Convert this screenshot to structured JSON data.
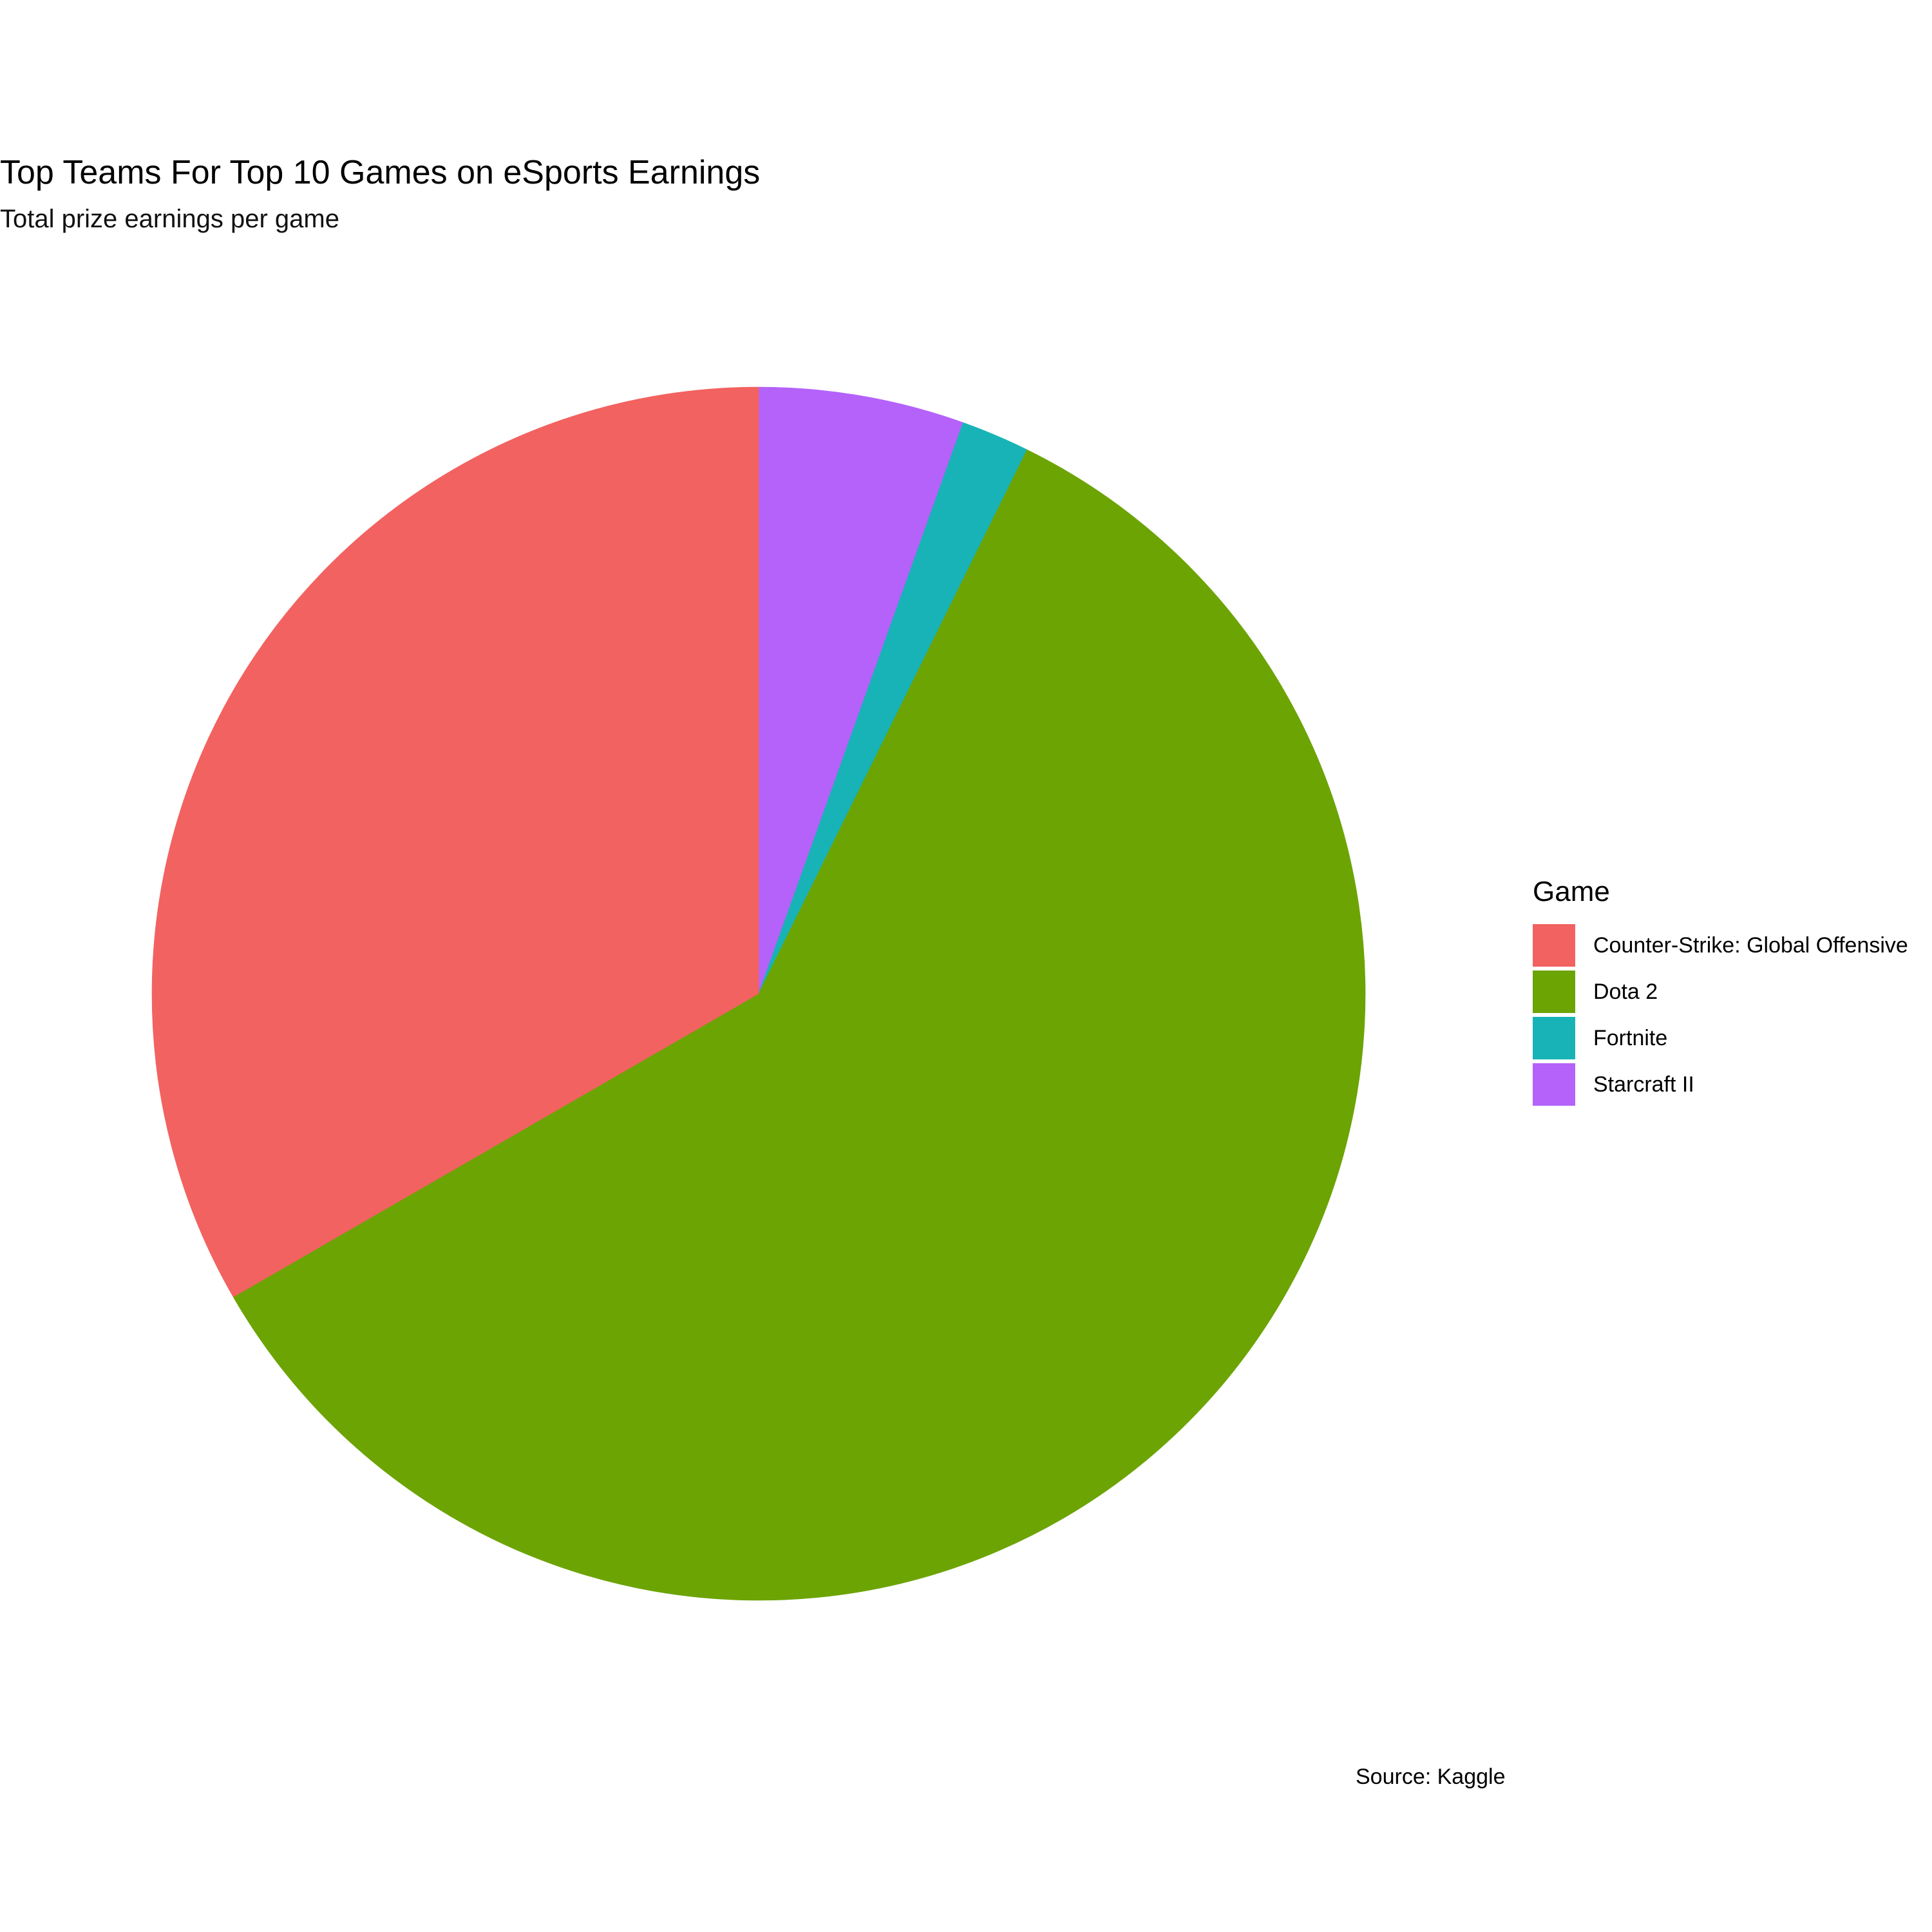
{
  "title": "Top Teams For Top 10 Games on eSports Earnings",
  "subtitle": "Total prize earnings per game",
  "caption": "Source: Kaggle",
  "legend": {
    "title": "Game",
    "items": [
      {
        "label": "Counter-Strike: Global Offensive",
        "color": "#F26260"
      },
      {
        "label": "Dota 2",
        "color": "#6CA404"
      },
      {
        "label": "Fortnite",
        "color": "#18B3B6"
      },
      {
        "label": "Starcraft II",
        "color": "#B462FA"
      }
    ]
  },
  "chart_data": {
    "type": "pie",
    "start_angle": "12 o'clock",
    "direction": "clockwise",
    "legend_position": "right",
    "slices": [
      {
        "game": "Starcraft II",
        "share": 0.025
      },
      {
        "game": "Starcraft II",
        "share": 0.0155
      },
      {
        "game": "Starcraft II",
        "share": 0.0135
      },
      {
        "game": "Fortnite",
        "share": 0.018
      },
      {
        "game": "Dota 2",
        "share": 0.2005
      },
      {
        "game": "Dota 2",
        "share": 0.108
      },
      {
        "game": "Dota 2",
        "share": 0.0985
      },
      {
        "game": "Dota 2",
        "share": 0.0595
      },
      {
        "game": "Dota 2",
        "share": 0.0515
      },
      {
        "game": "Dota 2",
        "share": 0.0485
      },
      {
        "game": "Dota 2",
        "share": 0.0195
      },
      {
        "game": "Counter-Strike: Global Offensive",
        "share": 0.0415
      },
      {
        "game": "Counter-Strike: Global Offensive",
        "share": 0.044
      },
      {
        "game": "Counter-Strike: Global Offensive",
        "share": 0.0375
      },
      {
        "game": "Counter-Strike: Global Offensive",
        "share": 0.036
      },
      {
        "game": "Counter-Strike: Global Offensive",
        "share": 0.0345
      },
      {
        "game": "Counter-Strike: Global Offensive",
        "share": 0.0325
      },
      {
        "game": "Counter-Strike: Global Offensive",
        "share": 0.0325
      },
      {
        "game": "Counter-Strike: Global Offensive",
        "share": 0.0275
      },
      {
        "game": "Counter-Strike: Global Offensive",
        "share": 0.0215
      },
      {
        "game": "Counter-Strike: Global Offensive",
        "share": 0.0115
      },
      {
        "game": "Counter-Strike: Global Offensive",
        "share": 0.01
      }
    ]
  }
}
